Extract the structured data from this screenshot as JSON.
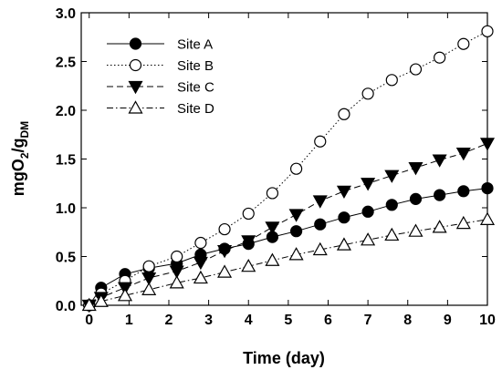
{
  "chart_data": {
    "type": "line",
    "xlabel": "Time (day)",
    "ylabel": {
      "main": "mgO",
      "sub1": "2",
      "mid": "/g",
      "sub2": "DM"
    },
    "xlim": [
      -0.2,
      10
    ],
    "ylim": [
      0,
      3.0
    ],
    "xticks": [
      0,
      1,
      2,
      3,
      4,
      5,
      6,
      7,
      8,
      9,
      10
    ],
    "yticks": [
      "0.0",
      "0.5",
      "1.0",
      "1.5",
      "2.0",
      "2.5",
      "3.0"
    ],
    "grid": false,
    "legend_position": "top-left",
    "series": [
      {
        "name": "Site A",
        "marker": "circle-filled",
        "line": "solid",
        "x": [
          0,
          0.3,
          0.9,
          1.5,
          2.2,
          2.8,
          3.4,
          4.0,
          4.6,
          5.2,
          5.8,
          6.4,
          7.0,
          7.6,
          8.2,
          8.8,
          9.4,
          10.0
        ],
        "y": [
          0.0,
          0.18,
          0.32,
          0.38,
          0.43,
          0.52,
          0.58,
          0.63,
          0.7,
          0.76,
          0.83,
          0.9,
          0.96,
          1.03,
          1.09,
          1.13,
          1.17,
          1.2
        ]
      },
      {
        "name": "Site B",
        "marker": "circle-open",
        "line": "dotted",
        "x": [
          0,
          0.3,
          0.9,
          1.5,
          2.2,
          2.8,
          3.4,
          4.0,
          4.6,
          5.2,
          5.8,
          6.4,
          7.0,
          7.6,
          8.2,
          8.8,
          9.4,
          10.0
        ],
        "y": [
          0.0,
          0.12,
          0.25,
          0.4,
          0.5,
          0.64,
          0.78,
          0.94,
          1.15,
          1.4,
          1.68,
          1.96,
          2.17,
          2.31,
          2.42,
          2.54,
          2.68,
          2.81
        ]
      },
      {
        "name": "Site C",
        "marker": "triangle-down-filled",
        "line": "dashed",
        "x": [
          0,
          0.3,
          0.9,
          1.5,
          2.2,
          2.8,
          3.4,
          4.0,
          4.6,
          5.2,
          5.8,
          6.4,
          7.0,
          7.6,
          8.2,
          8.8,
          9.4,
          10.0
        ],
        "y": [
          0.0,
          0.08,
          0.18,
          0.28,
          0.35,
          0.44,
          0.56,
          0.66,
          0.8,
          0.93,
          1.07,
          1.17,
          1.25,
          1.33,
          1.41,
          1.49,
          1.56,
          1.66
        ]
      },
      {
        "name": "Site D",
        "marker": "triangle-up-open",
        "line": "dash-dot",
        "x": [
          0,
          0.3,
          0.9,
          1.5,
          2.2,
          2.8,
          3.4,
          4.0,
          4.6,
          5.2,
          5.8,
          6.4,
          7.0,
          7.6,
          8.2,
          8.8,
          9.4,
          10.0
        ],
        "y": [
          0.0,
          0.04,
          0.1,
          0.16,
          0.23,
          0.28,
          0.34,
          0.4,
          0.46,
          0.52,
          0.57,
          0.62,
          0.67,
          0.72,
          0.76,
          0.8,
          0.84,
          0.88
        ]
      }
    ]
  }
}
